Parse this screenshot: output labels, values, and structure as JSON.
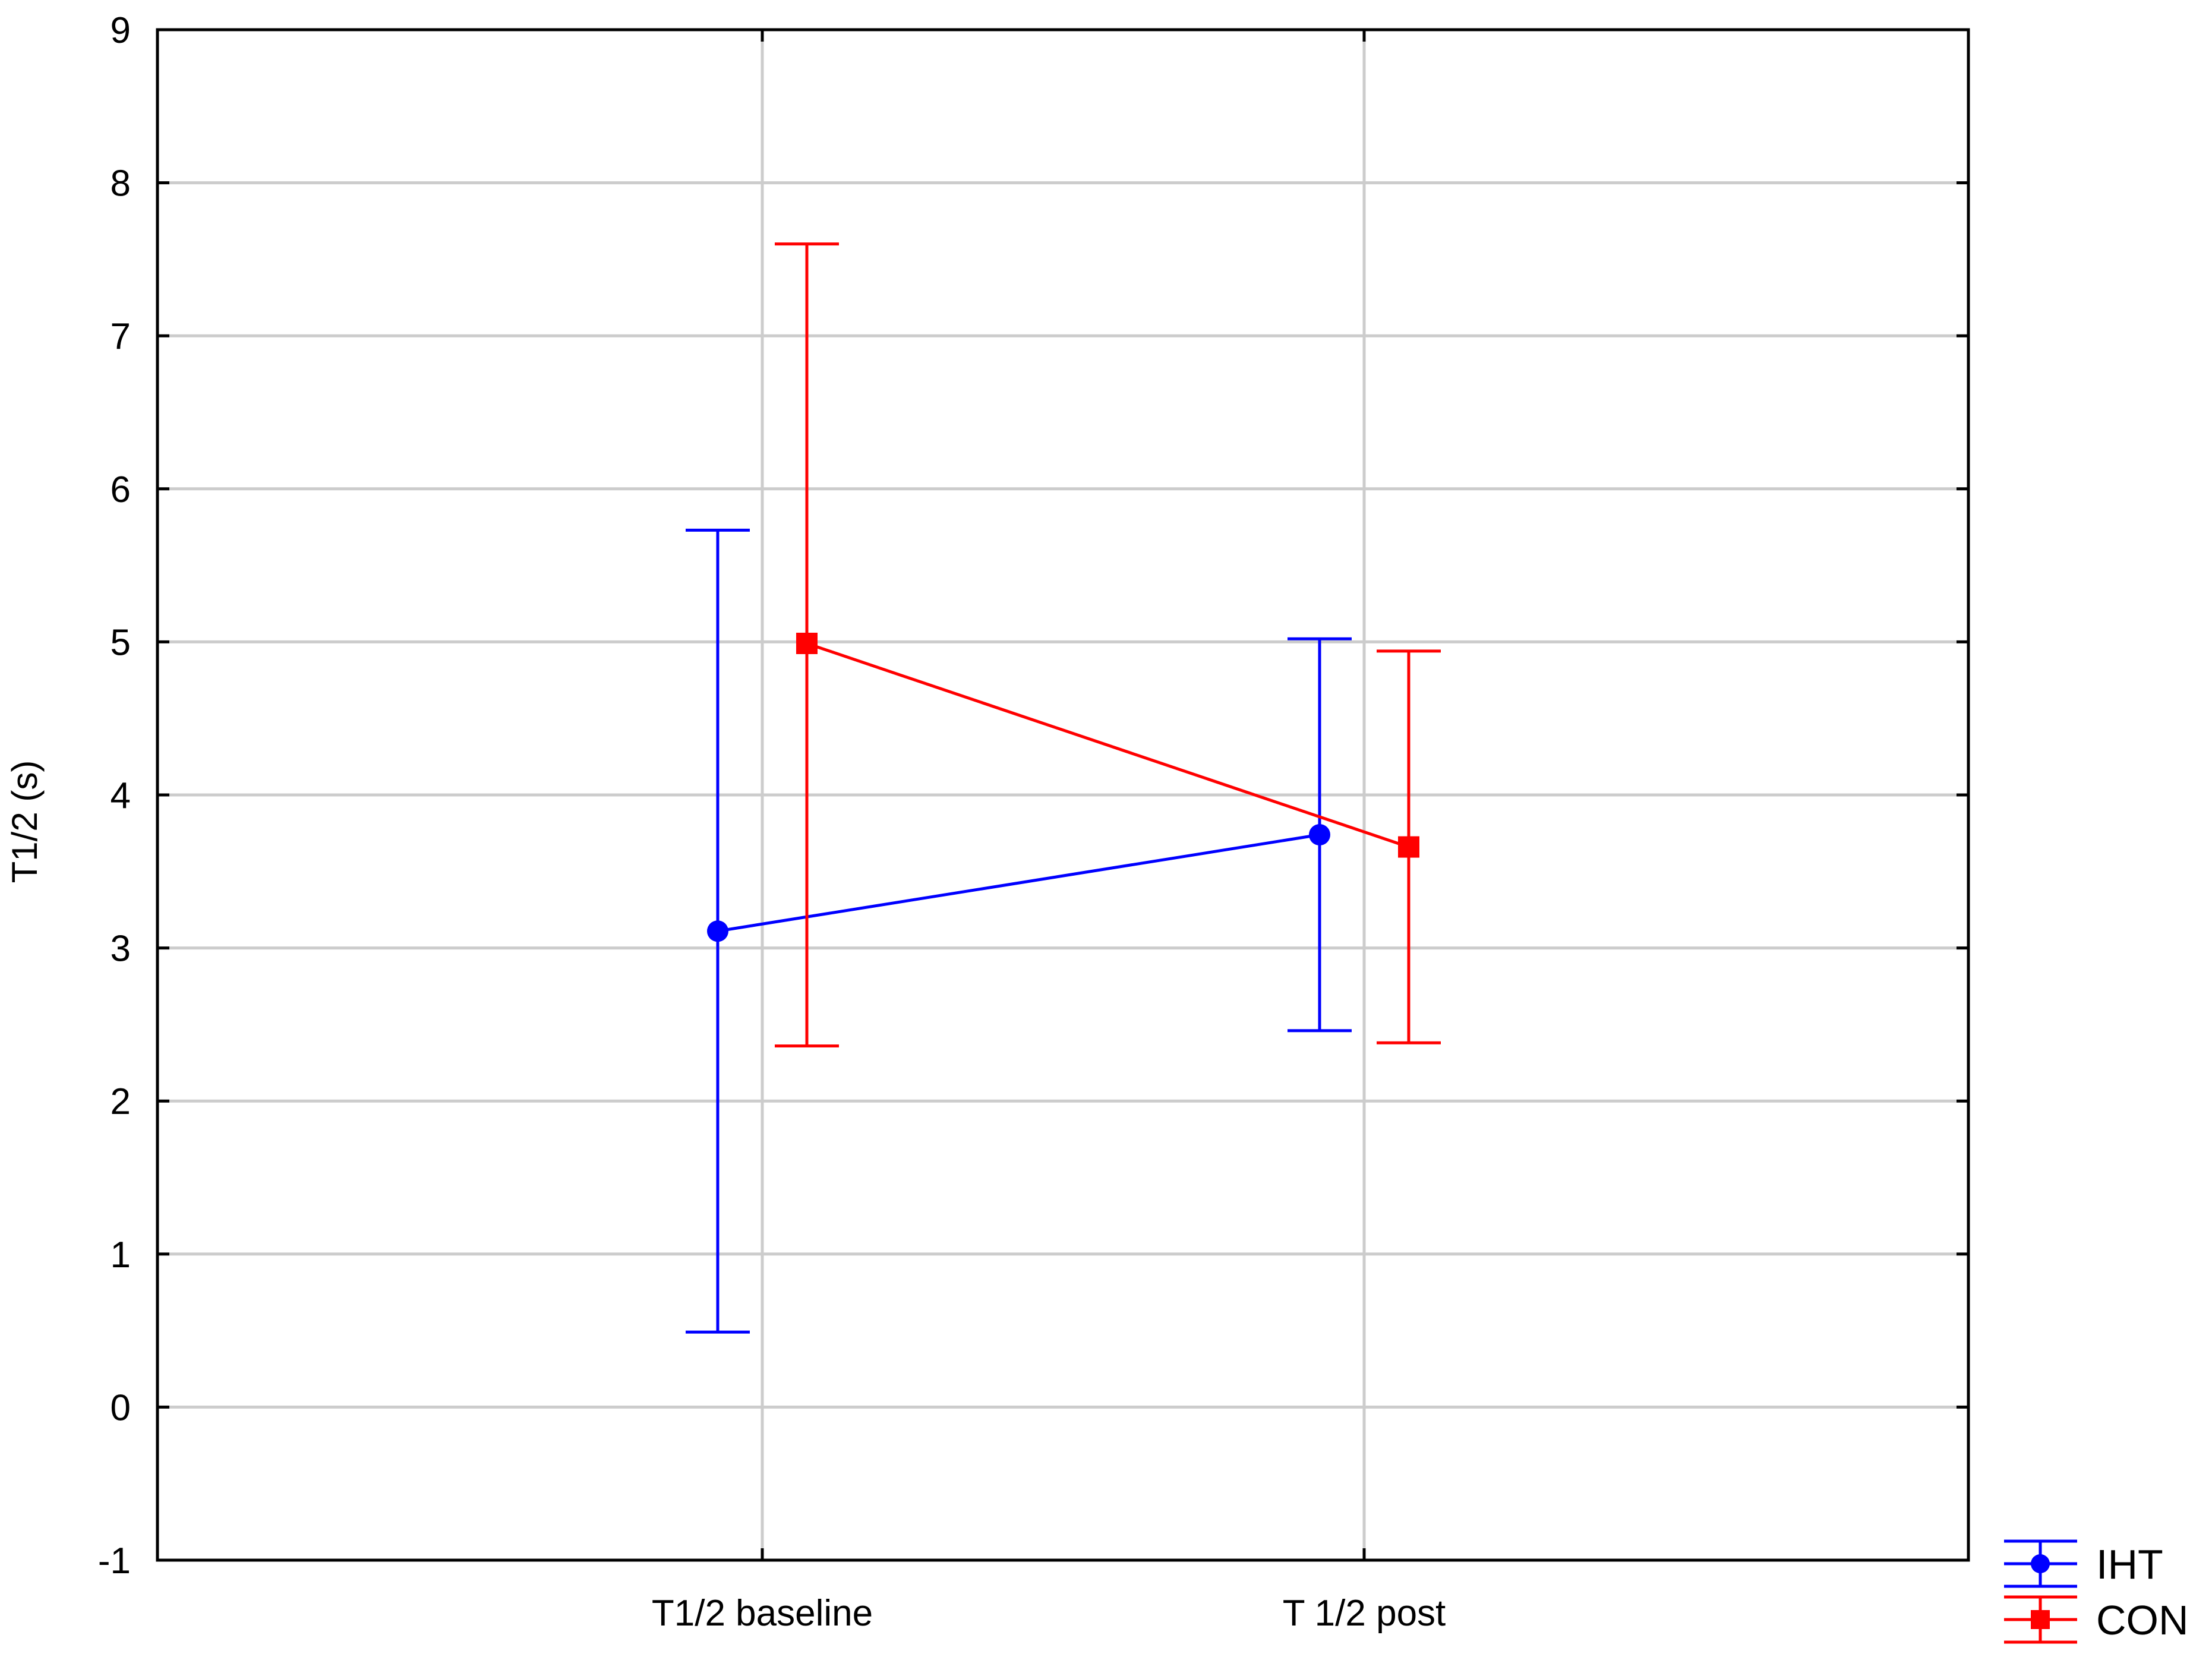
{
  "chart_data": {
    "type": "line",
    "title": "",
    "xlabel": "",
    "ylabel": "T1/2 (s)",
    "categories": [
      "T1/2 baseline",
      "T 1/2 post"
    ],
    "ylim": [
      -1,
      9
    ],
    "yticks": [
      -1,
      0,
      1,
      2,
      3,
      4,
      5,
      6,
      7,
      8,
      9
    ],
    "grid": true,
    "legend_position": "bottom-right",
    "series": [
      {
        "name": "IHT",
        "color": "#0000ff",
        "marker": "circle",
        "values": [
          3.11,
          3.74
        ],
        "error_low": [
          0.49,
          2.46
        ],
        "error_high": [
          5.73,
          5.02
        ]
      },
      {
        "name": "CON",
        "color": "#ff0000",
        "marker": "square",
        "values": [
          4.99,
          3.66
        ],
        "error_low": [
          2.36,
          2.38
        ],
        "error_high": [
          7.6,
          4.94
        ]
      }
    ]
  }
}
